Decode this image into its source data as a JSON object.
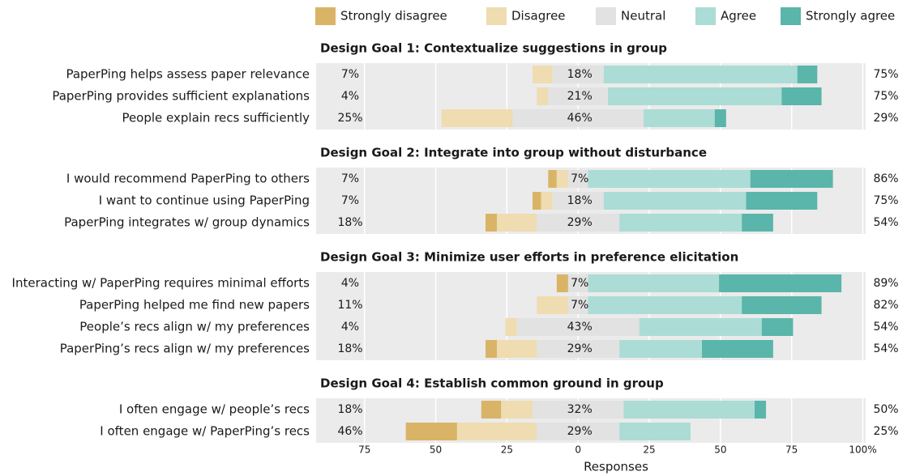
{
  "chart_data": {
    "type": "diverging-bar",
    "xlabel": "Responses",
    "xlim": [
      -92,
      101
    ],
    "xticks": [
      {
        "value": -75,
        "label": "75"
      },
      {
        "value": -50,
        "label": "50"
      },
      {
        "value": -25,
        "label": "25"
      },
      0,
      25,
      50,
      75,
      {
        "value": 100,
        "label": "100%"
      }
    ],
    "grid": true,
    "legend": [
      {
        "name": "Strongly disagree",
        "color": "#d9b467"
      },
      {
        "name": "Disagree",
        "color": "#efdcb0"
      },
      {
        "name": "Neutral",
        "color": "#e2e2e2"
      },
      {
        "name": "Agree",
        "color": "#acdcd6"
      },
      {
        "name": "Strongly agree",
        "color": "#5ab5aa"
      }
    ],
    "groups": [
      {
        "title": "Design Goal 1: Contextualize suggestions in group",
        "categories": [
          "PaperPing helps assess paper relevance",
          "PaperPing provides sufficient explanations",
          "People explain recs sufficiently"
        ],
        "series": [
          {
            "values": [
              0,
              0,
              0
            ]
          },
          {
            "values": [
              7,
              4,
              25
            ]
          },
          {
            "values": [
              18,
              21,
              46
            ]
          },
          {
            "values": [
              68,
              61,
              25
            ]
          },
          {
            "values": [
              7,
              14,
              4
            ]
          }
        ],
        "left_labels": [
          "7%",
          "4%",
          "25%"
        ],
        "neutral_labels": [
          "18%",
          "21%",
          "46%"
        ],
        "right_labels": [
          "75%",
          "75%",
          "29%"
        ]
      },
      {
        "title": "Design Goal 2: Integrate into group without disturbance",
        "categories": [
          "I would recommend PaperPing to others",
          "I want to continue using PaperPing",
          "PaperPing integrates w/ group dynamics"
        ],
        "series": [
          {
            "values": [
              3,
              3,
              4
            ]
          },
          {
            "values": [
              4,
              4,
              14
            ]
          },
          {
            "values": [
              7,
              18,
              29
            ]
          },
          {
            "values": [
              57,
              50,
              43
            ]
          },
          {
            "values": [
              29,
              25,
              11
            ]
          }
        ],
        "left_labels": [
          "7%",
          "7%",
          "18%"
        ],
        "neutral_labels": [
          "7%",
          "18%",
          "29%"
        ],
        "right_labels": [
          "86%",
          "75%",
          "54%"
        ]
      },
      {
        "title": "Design Goal 3: Minimize user efforts in preference elicitation",
        "categories": [
          "Interacting w/ PaperPing requires minimal efforts",
          "PaperPing helped me find new papers",
          "People’s recs align w/ my preferences",
          "PaperPing’s recs align w/ my preferences"
        ],
        "series": [
          {
            "values": [
              4,
              0,
              0,
              4
            ]
          },
          {
            "values": [
              0,
              11,
              4,
              14
            ]
          },
          {
            "values": [
              7,
              7,
              43,
              29
            ]
          },
          {
            "values": [
              46,
              54,
              43,
              29
            ]
          },
          {
            "values": [
              43,
              28,
              11,
              25
            ]
          }
        ],
        "left_labels": [
          "4%",
          "11%",
          "4%",
          "18%"
        ],
        "neutral_labels": [
          "7%",
          "7%",
          "43%",
          "29%"
        ],
        "right_labels": [
          "89%",
          "82%",
          "54%",
          "54%"
        ]
      },
      {
        "title": "Design Goal 4: Establish common ground in group",
        "categories": [
          "I often engage w/ people’s recs",
          "I often engage w/ PaperPing’s recs"
        ],
        "series": [
          {
            "values": [
              7,
              18
            ]
          },
          {
            "values": [
              11,
              28
            ]
          },
          {
            "values": [
              32,
              29
            ]
          },
          {
            "values": [
              46,
              25
            ]
          },
          {
            "values": [
              4,
              0
            ]
          }
        ],
        "left_labels": [
          "18%",
          "46%"
        ],
        "neutral_labels": [
          "32%",
          "29%"
        ],
        "right_labels": [
          "50%",
          "25%"
        ]
      }
    ]
  }
}
